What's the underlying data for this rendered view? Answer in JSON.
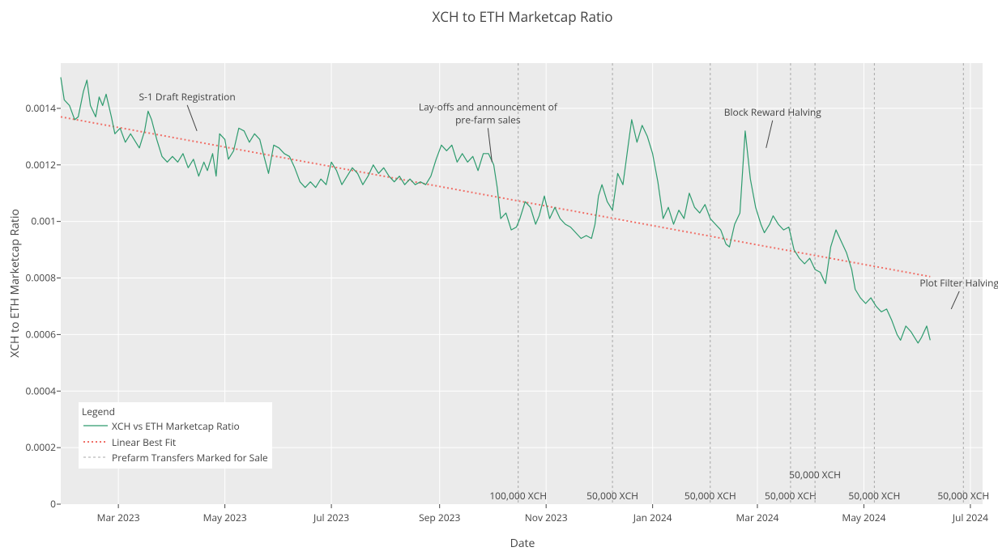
{
  "chart_data": {
    "type": "line",
    "title": "XCH to ETH Marketcap Ratio",
    "xlabel": "Date",
    "ylabel": "XCH to ETH Marketcap Ratio",
    "x_range": [
      "2023-01-27",
      "2024-07-08"
    ],
    "ylim": [
      0,
      0.00156
    ],
    "x_ticks": [
      {
        "date": "2023-03-01",
        "label": "Mar 2023"
      },
      {
        "date": "2023-05-01",
        "label": "May 2023"
      },
      {
        "date": "2023-07-01",
        "label": "Jul 2023"
      },
      {
        "date": "2023-09-01",
        "label": "Sep 2023"
      },
      {
        "date": "2023-11-01",
        "label": "Nov 2023"
      },
      {
        "date": "2024-01-01",
        "label": "Jan 2024"
      },
      {
        "date": "2024-03-01",
        "label": "Mar 2024"
      },
      {
        "date": "2024-05-01",
        "label": "May 2024"
      },
      {
        "date": "2024-07-01",
        "label": "Jul 2024"
      }
    ],
    "y_ticks": [
      {
        "value": 0,
        "label": "0"
      },
      {
        "value": 0.0002,
        "label": "0.0002"
      },
      {
        "value": 0.0004,
        "label": "0.0004"
      },
      {
        "value": 0.0006,
        "label": "0.0006"
      },
      {
        "value": 0.0008,
        "label": "0.0008"
      },
      {
        "value": 0.001,
        "label": "0.001"
      },
      {
        "value": 0.0012,
        "label": "0.0012"
      },
      {
        "value": 0.0014,
        "label": "0.0014"
      }
    ],
    "grid": true,
    "legend": {
      "title": "Legend",
      "position": "bottom-left",
      "entries": [
        {
          "label": "XCH vs ETH Marketcap Ratio",
          "style": "solid",
          "color": "#2e9b6e"
        },
        {
          "label": "Linear Best Fit",
          "style": "dotted",
          "color": "#f07068"
        },
        {
          "label": "Prefarm Transfers Marked for Sale",
          "style": "dashed",
          "color": "#a8a8a8"
        }
      ]
    },
    "series": [
      {
        "name": "XCH vs ETH Marketcap Ratio",
        "color": "#2e9b6e",
        "points": [
          [
            "2023-01-27",
            0.00151
          ],
          [
            "2023-01-29",
            0.00143
          ],
          [
            "2023-02-01",
            0.00141
          ],
          [
            "2023-02-04",
            0.00136
          ],
          [
            "2023-02-06",
            0.00137
          ],
          [
            "2023-02-09",
            0.00146
          ],
          [
            "2023-02-11",
            0.0015
          ],
          [
            "2023-02-13",
            0.00141
          ],
          [
            "2023-02-16",
            0.00137
          ],
          [
            "2023-02-18",
            0.00144
          ],
          [
            "2023-02-20",
            0.00141
          ],
          [
            "2023-02-22",
            0.00145
          ],
          [
            "2023-02-25",
            0.00137
          ],
          [
            "2023-02-27",
            0.00131
          ],
          [
            "2023-03-02",
            0.00133
          ],
          [
            "2023-03-05",
            0.00128
          ],
          [
            "2023-03-08",
            0.00131
          ],
          [
            "2023-03-10",
            0.00129
          ],
          [
            "2023-03-13",
            0.00126
          ],
          [
            "2023-03-16",
            0.00132
          ],
          [
            "2023-03-18",
            0.00139
          ],
          [
            "2023-03-20",
            0.00136
          ],
          [
            "2023-03-23",
            0.00129
          ],
          [
            "2023-03-26",
            0.00123
          ],
          [
            "2023-03-29",
            0.00121
          ],
          [
            "2023-04-01",
            0.00123
          ],
          [
            "2023-04-04",
            0.00121
          ],
          [
            "2023-04-07",
            0.00124
          ],
          [
            "2023-04-10",
            0.00119
          ],
          [
            "2023-04-13",
            0.00122
          ],
          [
            "2023-04-16",
            0.00116
          ],
          [
            "2023-04-19",
            0.00121
          ],
          [
            "2023-04-21",
            0.00118
          ],
          [
            "2023-04-24",
            0.00124
          ],
          [
            "2023-04-26",
            0.00116
          ],
          [
            "2023-04-28",
            0.00131
          ],
          [
            "2023-05-01",
            0.00129
          ],
          [
            "2023-05-03",
            0.00122
          ],
          [
            "2023-05-06",
            0.00125
          ],
          [
            "2023-05-09",
            0.00133
          ],
          [
            "2023-05-12",
            0.00132
          ],
          [
            "2023-05-15",
            0.00128
          ],
          [
            "2023-05-18",
            0.00131
          ],
          [
            "2023-05-21",
            0.00129
          ],
          [
            "2023-05-23",
            0.00124
          ],
          [
            "2023-05-26",
            0.00117
          ],
          [
            "2023-05-29",
            0.00127
          ],
          [
            "2023-06-01",
            0.00126
          ],
          [
            "2023-06-04",
            0.00124
          ],
          [
            "2023-06-07",
            0.00123
          ],
          [
            "2023-06-10",
            0.00119
          ],
          [
            "2023-06-13",
            0.00114
          ],
          [
            "2023-06-16",
            0.00112
          ],
          [
            "2023-06-19",
            0.00114
          ],
          [
            "2023-06-22",
            0.00112
          ],
          [
            "2023-06-25",
            0.00115
          ],
          [
            "2023-06-28",
            0.00113
          ],
          [
            "2023-07-01",
            0.00121
          ],
          [
            "2023-07-04",
            0.00118
          ],
          [
            "2023-07-07",
            0.00113
          ],
          [
            "2023-07-10",
            0.00116
          ],
          [
            "2023-07-13",
            0.00119
          ],
          [
            "2023-07-16",
            0.00117
          ],
          [
            "2023-07-19",
            0.00113
          ],
          [
            "2023-07-22",
            0.00116
          ],
          [
            "2023-07-25",
            0.0012
          ],
          [
            "2023-07-28",
            0.00117
          ],
          [
            "2023-07-31",
            0.00119
          ],
          [
            "2023-08-03",
            0.00116
          ],
          [
            "2023-08-06",
            0.00114
          ],
          [
            "2023-08-09",
            0.00116
          ],
          [
            "2023-08-12",
            0.00113
          ],
          [
            "2023-08-15",
            0.00115
          ],
          [
            "2023-08-18",
            0.00113
          ],
          [
            "2023-08-21",
            0.00114
          ],
          [
            "2023-08-24",
            0.00113
          ],
          [
            "2023-08-27",
            0.00116
          ],
          [
            "2023-08-30",
            0.00122
          ],
          [
            "2023-09-02",
            0.00127
          ],
          [
            "2023-09-05",
            0.00125
          ],
          [
            "2023-09-08",
            0.00127
          ],
          [
            "2023-09-11",
            0.00121
          ],
          [
            "2023-09-14",
            0.00124
          ],
          [
            "2023-09-17",
            0.00121
          ],
          [
            "2023-09-20",
            0.00123
          ],
          [
            "2023-09-23",
            0.00118
          ],
          [
            "2023-09-26",
            0.00124
          ],
          [
            "2023-09-29",
            0.00124
          ],
          [
            "2023-10-02",
            0.0012
          ],
          [
            "2023-10-04",
            0.00112
          ],
          [
            "2023-10-06",
            0.00101
          ],
          [
            "2023-10-09",
            0.00103
          ],
          [
            "2023-10-12",
            0.00097
          ],
          [
            "2023-10-15",
            0.00098
          ],
          [
            "2023-10-17",
            0.00101
          ],
          [
            "2023-10-20",
            0.00107
          ],
          [
            "2023-10-23",
            0.00105
          ],
          [
            "2023-10-26",
            0.00099
          ],
          [
            "2023-10-28",
            0.00102
          ],
          [
            "2023-10-31",
            0.00109
          ],
          [
            "2023-11-03",
            0.00101
          ],
          [
            "2023-11-06",
            0.00105
          ],
          [
            "2023-11-09",
            0.00101
          ],
          [
            "2023-11-12",
            0.00099
          ],
          [
            "2023-11-15",
            0.00098
          ],
          [
            "2023-11-18",
            0.00096
          ],
          [
            "2023-11-21",
            0.00094
          ],
          [
            "2023-11-24",
            0.00095
          ],
          [
            "2023-11-27",
            0.00094
          ],
          [
            "2023-11-29",
            0.00099
          ],
          [
            "2023-12-01",
            0.00109
          ],
          [
            "2023-12-03",
            0.00113
          ],
          [
            "2023-12-06",
            0.00107
          ],
          [
            "2023-12-09",
            0.00104
          ],
          [
            "2023-12-12",
            0.00117
          ],
          [
            "2023-12-15",
            0.00113
          ],
          [
            "2023-12-18",
            0.00127
          ],
          [
            "2023-12-20",
            0.00136
          ],
          [
            "2023-12-23",
            0.00128
          ],
          [
            "2023-12-26",
            0.00134
          ],
          [
            "2023-12-29",
            0.0013
          ],
          [
            "2024-01-01",
            0.00124
          ],
          [
            "2024-01-04",
            0.00114
          ],
          [
            "2024-01-07",
            0.00101
          ],
          [
            "2024-01-10",
            0.00105
          ],
          [
            "2024-01-13",
            0.00099
          ],
          [
            "2024-01-16",
            0.00104
          ],
          [
            "2024-01-19",
            0.00101
          ],
          [
            "2024-01-22",
            0.0011
          ],
          [
            "2024-01-25",
            0.00105
          ],
          [
            "2024-01-28",
            0.00103
          ],
          [
            "2024-01-31",
            0.00106
          ],
          [
            "2024-02-03",
            0.00101
          ],
          [
            "2024-02-06",
            0.00099
          ],
          [
            "2024-02-09",
            0.00097
          ],
          [
            "2024-02-12",
            0.00092
          ],
          [
            "2024-02-14",
            0.00091
          ],
          [
            "2024-02-17",
            0.00099
          ],
          [
            "2024-02-20",
            0.00103
          ],
          [
            "2024-02-23",
            0.00132
          ],
          [
            "2024-02-26",
            0.00115
          ],
          [
            "2024-02-29",
            0.00105
          ],
          [
            "2024-03-03",
            0.00099
          ],
          [
            "2024-03-05",
            0.00096
          ],
          [
            "2024-03-08",
            0.00099
          ],
          [
            "2024-03-10",
            0.00102
          ],
          [
            "2024-03-13",
            0.00099
          ],
          [
            "2024-03-16",
            0.00097
          ],
          [
            "2024-03-19",
            0.00098
          ],
          [
            "2024-03-22",
            0.0009
          ],
          [
            "2024-03-25",
            0.00087
          ],
          [
            "2024-03-28",
            0.00085
          ],
          [
            "2024-03-31",
            0.00087
          ],
          [
            "2024-04-03",
            0.00083
          ],
          [
            "2024-04-06",
            0.00082
          ],
          [
            "2024-04-09",
            0.00078
          ],
          [
            "2024-04-12",
            0.00091
          ],
          [
            "2024-04-15",
            0.00097
          ],
          [
            "2024-04-18",
            0.00093
          ],
          [
            "2024-04-21",
            0.00089
          ],
          [
            "2024-04-24",
            0.00083
          ],
          [
            "2024-04-26",
            0.00076
          ],
          [
            "2024-04-29",
            0.00073
          ],
          [
            "2024-05-02",
            0.00071
          ],
          [
            "2024-05-05",
            0.00073
          ],
          [
            "2024-05-08",
            0.0007
          ],
          [
            "2024-05-11",
            0.00068
          ],
          [
            "2024-05-14",
            0.00069
          ],
          [
            "2024-05-17",
            0.00065
          ],
          [
            "2024-05-20",
            0.0006
          ],
          [
            "2024-05-22",
            0.00058
          ],
          [
            "2024-05-25",
            0.00063
          ],
          [
            "2024-05-28",
            0.00061
          ],
          [
            "2024-05-30",
            0.00059
          ],
          [
            "2024-06-01",
            0.00057
          ],
          [
            "2024-06-03",
            0.00059
          ],
          [
            "2024-06-06",
            0.00063
          ],
          [
            "2024-06-08",
            0.00058
          ]
        ]
      },
      {
        "name": "Linear Best Fit",
        "color": "#f07068",
        "points": [
          [
            "2023-01-27",
            0.00137
          ],
          [
            "2024-06-08",
            0.000805
          ]
        ]
      }
    ],
    "vertical_lines": [
      {
        "date": "2023-10-16",
        "label": "100,000 XCH"
      },
      {
        "date": "2023-12-09",
        "label": "50,000 XCH"
      },
      {
        "date": "2024-02-03",
        "label": "50,000 XCH"
      },
      {
        "date": "2024-03-20",
        "label": "50,000 XCH"
      },
      {
        "date": "2024-04-03",
        "label": "50,000 XCH"
      },
      {
        "date": "2024-05-07",
        "label": "50,000 XCH"
      },
      {
        "date": "2024-06-27",
        "label": "50,000 XCH"
      }
    ],
    "annotations": [
      {
        "lines": [
          "S-1 Draft Registration"
        ],
        "date": "2023-04-15",
        "value": 0.00132
      },
      {
        "lines": [
          "Lay-offs and announcement of",
          "pre-farm sales"
        ],
        "date": "2023-10-01",
        "value": 0.00121
      },
      {
        "lines": [
          "Block Reward Halving"
        ],
        "date": "2024-03-06",
        "value": 0.00126
      },
      {
        "lines": [
          "Plot Filter Halving"
        ],
        "date": "2024-06-20",
        "value": 0.00069
      }
    ]
  }
}
